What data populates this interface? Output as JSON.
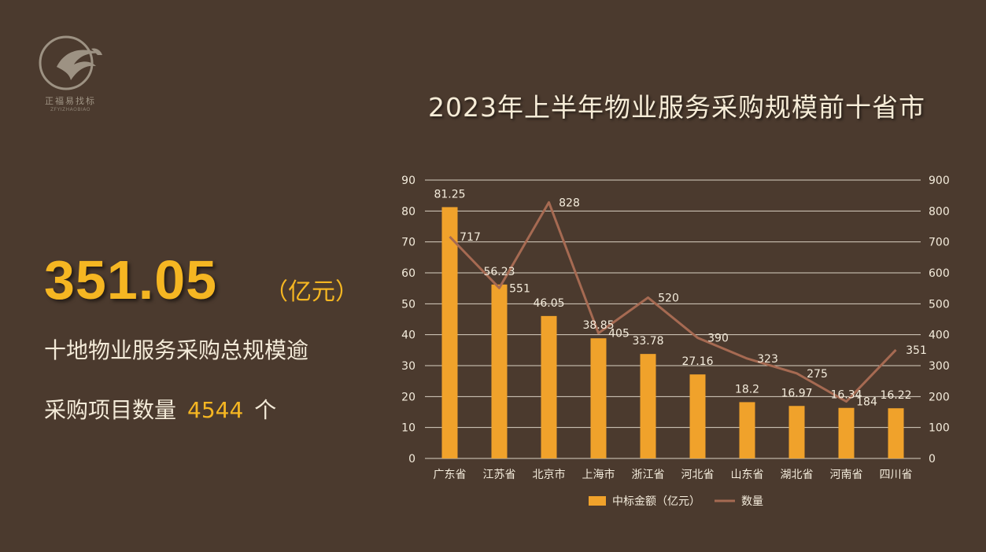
{
  "logo": {
    "name": "正福易找标",
    "sub": "ZFYIZHAOBIAO"
  },
  "headline": {
    "total_value": "351.05",
    "total_unit": "（亿元）",
    "description": "十地物业服务采购总规模逾",
    "count_prefix": "采购项目数量",
    "count_value": "4544",
    "count_suffix": "个"
  },
  "colors": {
    "background": "#4b3a2e",
    "bar": "#f0a22b",
    "line": "#a66a52",
    "accent": "#f5b622"
  },
  "chart_data": {
    "type": "bar",
    "title": "2023年上半年物业服务采购规模前十省市",
    "categories": [
      "广东省",
      "江苏省",
      "北京市",
      "上海市",
      "浙江省",
      "河北省",
      "山东省",
      "湖北省",
      "河南省",
      "四川省"
    ],
    "series": [
      {
        "name": "中标金额（亿元）",
        "type": "bar",
        "axis": "left",
        "values": [
          81.25,
          56.23,
          46.05,
          38.85,
          33.78,
          27.16,
          18.2,
          16.97,
          16.34,
          16.22
        ],
        "labels": [
          "81.25",
          "56.23",
          "46.05",
          "38.85",
          "33.78",
          "27.16",
          "18.2",
          "16.97",
          "16.34",
          "16.22"
        ]
      },
      {
        "name": "数量",
        "type": "line",
        "axis": "right",
        "values": [
          717,
          551,
          828,
          405,
          520,
          390,
          323,
          275,
          184,
          351
        ],
        "labels": [
          "717",
          "551",
          "828",
          "405",
          "520",
          "390",
          "323",
          "275",
          "184",
          "351"
        ]
      }
    ],
    "y_left": {
      "min": 0,
      "max": 90,
      "step": 10,
      "ticks": [
        "0",
        "10",
        "20",
        "30",
        "40",
        "50",
        "60",
        "70",
        "80",
        "90"
      ]
    },
    "y_right": {
      "min": 0,
      "max": 900,
      "step": 100,
      "ticks": [
        "0",
        "100",
        "200",
        "300",
        "400",
        "500",
        "600",
        "700",
        "800",
        "900"
      ]
    },
    "grid": true,
    "legend": "bottom"
  }
}
